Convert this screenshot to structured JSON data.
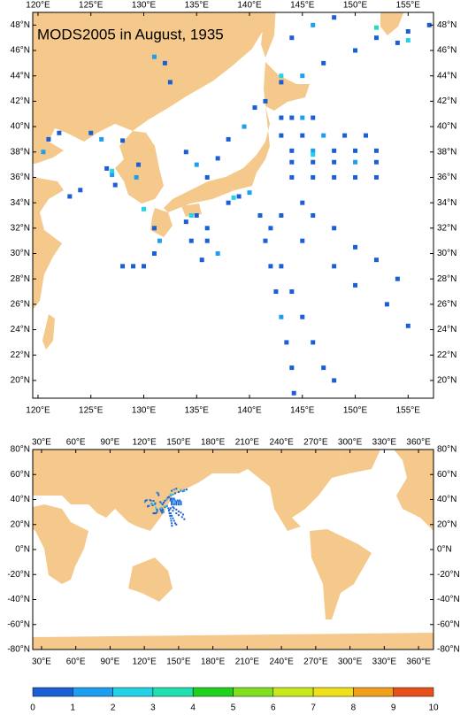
{
  "title": "MODS2005 in August, 1935",
  "land_color": "#f5c98b",
  "region_map": {
    "xlim": [
      119.5,
      157.4
    ],
    "ylim": [
      18.6,
      49.0
    ],
    "xticks": [
      {
        "value": 120,
        "label": "120°E"
      },
      {
        "value": 125,
        "label": "125°E"
      },
      {
        "value": 130,
        "label": "130°E"
      },
      {
        "value": 135,
        "label": "135°E"
      },
      {
        "value": 140,
        "label": "140°E"
      },
      {
        "value": 145,
        "label": "145°E"
      },
      {
        "value": 150,
        "label": "150°E"
      },
      {
        "value": 155,
        "label": "155°E"
      }
    ],
    "yticks": [
      {
        "value": 20,
        "label": "20°N"
      },
      {
        "value": 22,
        "label": "22°N"
      },
      {
        "value": 24,
        "label": "24°N"
      },
      {
        "value": 26,
        "label": "26°N"
      },
      {
        "value": 28,
        "label": "28°N"
      },
      {
        "value": 30,
        "label": "30°N"
      },
      {
        "value": 32,
        "label": "32°N"
      },
      {
        "value": 34,
        "label": "34°N"
      },
      {
        "value": 36,
        "label": "36°N"
      },
      {
        "value": 38,
        "label": "38°N"
      },
      {
        "value": 40,
        "label": "40°N"
      },
      {
        "value": 42,
        "label": "42°N"
      },
      {
        "value": 44,
        "label": "44°N"
      },
      {
        "value": 46,
        "label": "46°N"
      },
      {
        "value": 48,
        "label": "48°N"
      }
    ]
  },
  "global_map": {
    "xlim": [
      22.3,
      373.1
    ],
    "ylim": [
      -80,
      80
    ],
    "xticks": [
      {
        "value": 30,
        "label": "30°E"
      },
      {
        "value": 60,
        "label": "60°E"
      },
      {
        "value": 90,
        "label": "90°E"
      },
      {
        "value": 120,
        "label": "120°E"
      },
      {
        "value": 150,
        "label": "150°E"
      },
      {
        "value": 180,
        "label": "180°E"
      },
      {
        "value": 210,
        "label": "210°E"
      },
      {
        "value": 240,
        "label": "240°E"
      },
      {
        "value": 270,
        "label": "270°E"
      },
      {
        "value": 300,
        "label": "300°E"
      },
      {
        "value": 330,
        "label": "330°E"
      },
      {
        "value": 360,
        "label": "360°E"
      }
    ],
    "yticks": [
      {
        "value": -80,
        "label": "-80°N"
      },
      {
        "value": -60,
        "label": "-60°N"
      },
      {
        "value": -40,
        "label": "-40°N"
      },
      {
        "value": -20,
        "label": "-20°N"
      },
      {
        "value": 0,
        "label": "0°N"
      },
      {
        "value": 20,
        "label": "20°N"
      },
      {
        "value": 40,
        "label": "40°N"
      },
      {
        "value": 60,
        "label": "60°N"
      },
      {
        "value": 80,
        "label": "80°N"
      }
    ]
  },
  "colorbar": {
    "ticks": [
      0,
      1,
      2,
      3,
      4,
      5,
      6,
      7,
      8,
      9,
      10
    ],
    "colors": [
      "#1a5fd6",
      "#1e9ef0",
      "#22d2e6",
      "#20e0b0",
      "#1ed21e",
      "#7ee01e",
      "#c8e81a",
      "#f0e01a",
      "#f0a01a",
      "#e8501a"
    ]
  },
  "observations": {
    "lon": [
      143,
      144,
      145,
      146,
      143,
      145,
      147,
      149,
      151,
      144,
      146,
      148,
      150,
      152,
      144,
      146,
      148,
      150,
      152,
      144,
      146,
      148,
      150,
      152,
      145,
      146,
      148,
      150,
      152,
      154,
      141,
      141.5,
      142,
      142.5,
      143,
      143.5,
      144,
      144.2,
      142,
      143,
      144,
      145,
      146,
      147,
      148,
      143,
      145,
      148,
      150,
      153,
      155,
      127,
      127.3,
      126.5,
      126,
      125,
      128,
      129.5,
      129.3,
      128,
      129,
      130,
      131,
      131.5,
      131,
      134,
      135,
      136,
      137,
      138,
      139.5,
      140.5,
      141.5,
      143,
      145,
      147,
      150,
      152,
      155,
      157,
      144,
      146,
      148,
      154,
      121,
      122,
      120.5,
      123,
      124,
      132,
      132.5,
      131,
      135,
      136,
      136,
      137,
      138,
      139,
      140,
      135.5,
      134.5,
      134,
      138.5,
      134.5,
      130,
      127,
      152,
      146,
      155,
      143
    ],
    "lat": [
      40.7,
      40.7,
      40.7,
      40.7,
      39.3,
      39.3,
      39.3,
      39.3,
      39.3,
      38.1,
      38.1,
      38.1,
      38.1,
      38.1,
      37.2,
      37.2,
      37.2,
      37.2,
      37.2,
      36,
      36,
      36,
      36,
      36,
      34,
      33,
      32,
      30.5,
      29.5,
      28,
      33,
      31,
      29,
      27,
      25,
      23,
      21,
      19,
      32,
      29,
      27,
      25,
      23,
      21,
      20,
      33,
      31,
      29,
      27.5,
      26,
      24.3,
      36.2,
      35.4,
      36.7,
      39,
      39.5,
      38.9,
      37,
      36,
      29,
      29,
      29,
      30,
      31,
      32,
      38,
      37,
      36,
      37.5,
      39,
      40,
      41.5,
      42,
      43.5,
      44,
      45,
      46,
      47,
      47.5,
      48,
      47,
      48,
      48.6,
      46.6,
      39,
      39.5,
      38,
      34.5,
      35,
      45,
      43.5,
      45.5,
      33,
      32,
      31,
      30,
      34,
      34.5,
      34.8,
      29.5,
      31,
      32.5,
      34.4,
      33,
      33.5,
      36.5,
      47.8,
      37.8,
      46.8,
      44
    ],
    "value": [
      0.8,
      0.8,
      1.3,
      0.8,
      0.8,
      0.8,
      1.3,
      0.8,
      0.8,
      0.8,
      1.3,
      0.8,
      0.8,
      0.8,
      0.8,
      0.8,
      0.8,
      1.3,
      0.8,
      0.8,
      0.8,
      0.8,
      0.8,
      0.8,
      0.8,
      0.8,
      0.8,
      0.8,
      0.8,
      0.8,
      0.8,
      0.8,
      0.8,
      0.8,
      1.3,
      0.8,
      0.8,
      0.8,
      0.8,
      0.8,
      0.8,
      0.8,
      0.8,
      0.8,
      0.8,
      0.8,
      0.8,
      0.8,
      0.8,
      0.8,
      0.8,
      1.3,
      0.8,
      0.8,
      1.3,
      0.8,
      0.8,
      0.8,
      1.3,
      0.8,
      0.8,
      0.8,
      0.8,
      1.3,
      0.8,
      0.8,
      1.3,
      0.8,
      0.8,
      0.8,
      1.3,
      0.8,
      0.8,
      0.8,
      1.3,
      0.8,
      0.8,
      0.8,
      0.8,
      0.8,
      0.8,
      1.3,
      0.8,
      0.8,
      0.8,
      0.8,
      1.3,
      0.8,
      0.8,
      0.8,
      0.8,
      1.3,
      0.8,
      0.8,
      0.8,
      1.3,
      0.8,
      0.8,
      1.3,
      0.8,
      0.8,
      0.8,
      2.3,
      2.5,
      2.4,
      2.2,
      3.2,
      2.5,
      2.1,
      2.2
    ]
  }
}
